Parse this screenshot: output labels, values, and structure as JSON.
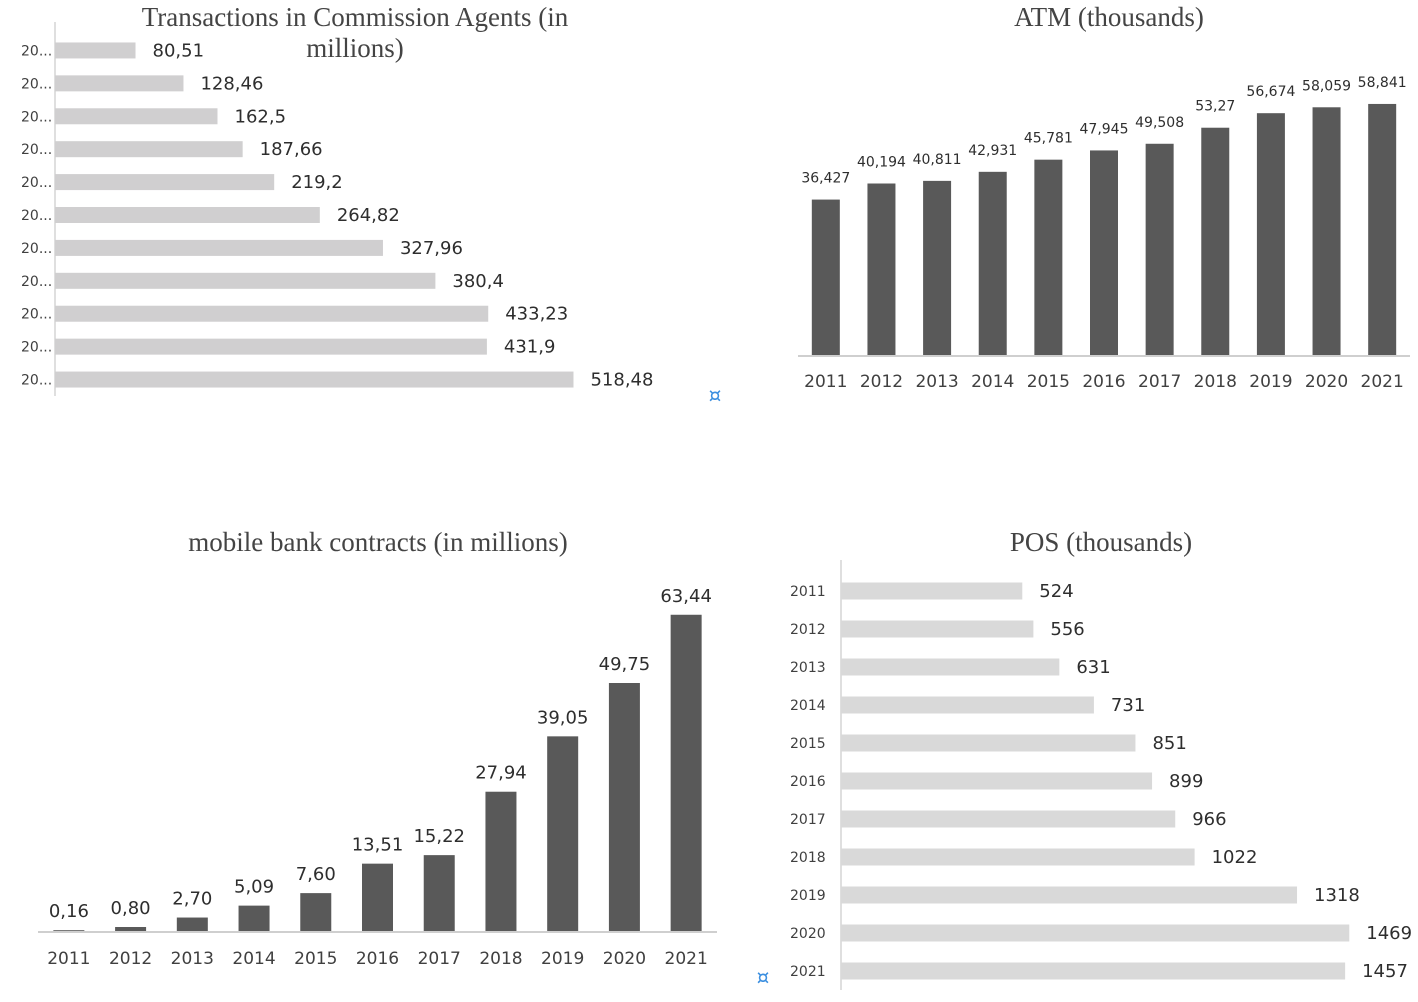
{
  "chart_data": [
    {
      "id": "agents",
      "type": "bar",
      "orientation": "horizontal",
      "title": "Transactions in Commission Agents (in millions)",
      "title_lines": [
        "Transactions in Commission Agents (in",
        "millions)"
      ],
      "categories": [
        "20...",
        "20...",
        "20...",
        "20...",
        "20...",
        "20...",
        "20...",
        "20...",
        "20...",
        "20...",
        "20..."
      ],
      "values": [
        80.51,
        128.46,
        162.5,
        187.66,
        219.2,
        264.82,
        327.96,
        380.4,
        433.23,
        431.9,
        518.48
      ],
      "labels": [
        "80,51",
        "128,46",
        "162,5",
        "187,66",
        "219,2",
        "264,82",
        "327,96",
        "380,4",
        "433,23",
        "431,9",
        "518,48"
      ],
      "bar_color": "#d0cfd0",
      "xlim": [
        0,
        600
      ]
    },
    {
      "id": "atm",
      "type": "bar",
      "orientation": "vertical",
      "title": "ATM (thousands)",
      "categories": [
        "2011",
        "2012",
        "2013",
        "2014",
        "2015",
        "2016",
        "2017",
        "2018",
        "2019",
        "2020",
        "2021"
      ],
      "values": [
        36.427,
        40.194,
        40.811,
        42.931,
        45.781,
        47.945,
        49.508,
        53.27,
        56.674,
        58.059,
        58.841
      ],
      "labels": [
        "36,427",
        "40,194",
        "40,811",
        "42,931",
        "45,781",
        "47,945",
        "49,508",
        "53,27",
        "56,674",
        "58,059",
        "58,841"
      ],
      "bar_color": "#595959",
      "ylim": [
        0,
        60
      ]
    },
    {
      "id": "mobile",
      "type": "bar",
      "orientation": "vertical",
      "title": "mobile bank contracts (in millions)",
      "categories": [
        "2011",
        "2012",
        "2013",
        "2014",
        "2015",
        "2016",
        "2017",
        "2018",
        "2019",
        "2020",
        "2021"
      ],
      "values": [
        0.16,
        0.8,
        2.7,
        5.09,
        7.6,
        13.51,
        15.22,
        27.94,
        39.05,
        49.75,
        63.44
      ],
      "labels": [
        "0,16",
        "0,80",
        "2,70",
        "5,09",
        "7,60",
        "13,51",
        "15,22",
        "27,94",
        "39,05",
        "49,75",
        "63,44"
      ],
      "bar_color": "#595959",
      "ylim": [
        0,
        66
      ]
    },
    {
      "id": "pos",
      "type": "bar",
      "orientation": "horizontal",
      "title": "POS (thousands)",
      "categories": [
        "2011",
        "2012",
        "2013",
        "2014",
        "2015",
        "2016",
        "2017",
        "2018",
        "2019",
        "2020",
        "2021"
      ],
      "values": [
        524,
        556,
        631,
        731,
        851,
        899,
        966,
        1022,
        1318,
        1469,
        1457
      ],
      "labels": [
        "524",
        "556",
        "631",
        "731",
        "851",
        "899",
        "966",
        "1022",
        "1318",
        "1469",
        "1457"
      ],
      "bar_color": "#d9d9d9",
      "xlim": [
        0,
        1500
      ]
    }
  ],
  "marker_glyph": "¤"
}
